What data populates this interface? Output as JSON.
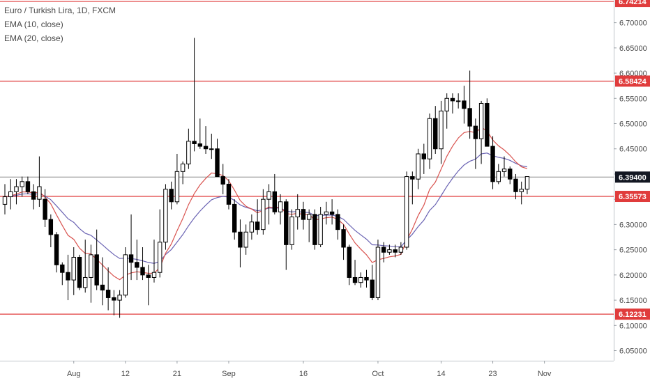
{
  "legend": {
    "title": "Euro / Turkish Lira, 1D, FXCM",
    "ema1": "EMA (10, close)",
    "ema2": "EMA (20, close)"
  },
  "colors": {
    "up_fill": "#ffffff",
    "down_fill": "#000000",
    "candle_outline": "#000000",
    "level_line": "#e03c3c",
    "ema10": "#d9534f",
    "ema20": "#6a63b3",
    "current_price_line": "#888888",
    "current_tag": "#131722"
  },
  "chart_data": {
    "type": "candlestick",
    "title": "Euro / Turkish Lira, 1D, FXCM",
    "ylim": [
      6.03,
      6.745
    ],
    "y_ticks": [
      "6.05000",
      "6.10000",
      "6.15000",
      "6.20000",
      "6.25000",
      "6.30000",
      "6.35000",
      "6.40000",
      "6.45000",
      "6.50000",
      "6.55000",
      "6.60000",
      "6.65000",
      "6.70000"
    ],
    "x_ticks": [
      {
        "label": "Aug",
        "index": 12
      },
      {
        "label": "12",
        "index": 21
      },
      {
        "label": "21",
        "index": 30
      },
      {
        "label": "Sep",
        "index": 39
      },
      {
        "label": "16",
        "index": 52
      },
      {
        "label": "Oct",
        "index": 65
      },
      {
        "label": "14",
        "index": 76
      },
      {
        "label": "23",
        "index": 85
      },
      {
        "label": "Nov",
        "index": 94
      }
    ],
    "levels": [
      {
        "value": 6.74214,
        "label": "6.74214"
      },
      {
        "value": 6.58424,
        "label": "6.58424"
      },
      {
        "value": 6.35573,
        "label": "6.35573"
      },
      {
        "value": 6.12231,
        "label": "6.12231"
      }
    ],
    "current_price": {
      "value": 6.394,
      "label": "6.39400"
    },
    "candles": [
      [
        6.34,
        6.38,
        6.32,
        6.355
      ],
      [
        6.355,
        6.39,
        6.33,
        6.365
      ],
      [
        6.365,
        6.39,
        6.34,
        6.375
      ],
      [
        6.375,
        6.395,
        6.355,
        6.385
      ],
      [
        6.385,
        6.395,
        6.36,
        6.365
      ],
      [
        6.365,
        6.38,
        6.33,
        6.35
      ],
      [
        6.35,
        6.435,
        6.335,
        6.375
      ],
      [
        6.35,
        6.37,
        6.295,
        6.31
      ],
      [
        6.31,
        6.32,
        6.255,
        6.28
      ],
      [
        6.28,
        6.285,
        6.205,
        6.22
      ],
      [
        6.22,
        6.225,
        6.18,
        6.205
      ],
      [
        6.205,
        6.24,
        6.15,
        6.19
      ],
      [
        6.19,
        6.255,
        6.16,
        6.235
      ],
      [
        6.235,
        6.24,
        6.17,
        6.175
      ],
      [
        6.175,
        6.27,
        6.165,
        6.195
      ],
      [
        6.195,
        6.26,
        6.145,
        6.24
      ],
      [
        6.24,
        6.29,
        6.17,
        6.18
      ],
      [
        6.18,
        6.235,
        6.14,
        6.17
      ],
      [
        6.17,
        6.215,
        6.13,
        6.155
      ],
      [
        6.155,
        6.17,
        6.12,
        6.15
      ],
      [
        6.15,
        6.17,
        6.115,
        6.16
      ],
      [
        6.16,
        6.255,
        6.155,
        6.24
      ],
      [
        6.24,
        6.32,
        6.19,
        6.225
      ],
      [
        6.225,
        6.27,
        6.19,
        6.215
      ],
      [
        6.215,
        6.255,
        6.19,
        6.2
      ],
      [
        6.2,
        6.22,
        6.14,
        6.195
      ],
      [
        6.195,
        6.27,
        6.185,
        6.205
      ],
      [
        6.205,
        6.33,
        6.195,
        6.265
      ],
      [
        6.265,
        6.38,
        6.25,
        6.37
      ],
      [
        6.37,
        6.385,
        6.33,
        6.345
      ],
      [
        6.345,
        6.44,
        6.34,
        6.405
      ],
      [
        6.405,
        6.425,
        6.38,
        6.42
      ],
      [
        6.42,
        6.49,
        6.41,
        6.465
      ],
      [
        6.465,
        6.67,
        6.445,
        6.46
      ],
      [
        6.46,
        6.51,
        6.45,
        6.455
      ],
      [
        6.455,
        6.495,
        6.44,
        6.45
      ],
      [
        6.45,
        6.48,
        6.43,
        6.45
      ],
      [
        6.45,
        6.47,
        6.4,
        6.395
      ],
      [
        6.395,
        6.42,
        6.36,
        6.38
      ],
      [
        6.38,
        6.39,
        6.33,
        6.34
      ],
      [
        6.34,
        6.35,
        6.27,
        6.285
      ],
      [
        6.285,
        6.31,
        6.215,
        6.255
      ],
      [
        6.255,
        6.3,
        6.24,
        6.285
      ],
      [
        6.285,
        6.32,
        6.27,
        6.305
      ],
      [
        6.305,
        6.35,
        6.28,
        6.29
      ],
      [
        6.29,
        6.37,
        6.28,
        6.35
      ],
      [
        6.35,
        6.38,
        6.3,
        6.365
      ],
      [
        6.365,
        6.4,
        6.32,
        6.325
      ],
      [
        6.325,
        6.36,
        6.3,
        6.345
      ],
      [
        6.345,
        6.35,
        6.21,
        6.26
      ],
      [
        6.26,
        6.33,
        6.25,
        6.315
      ],
      [
        6.315,
        6.36,
        6.29,
        6.33
      ],
      [
        6.33,
        6.345,
        6.29,
        6.31
      ],
      [
        6.31,
        6.33,
        6.265,
        6.32
      ],
      [
        6.32,
        6.33,
        6.25,
        6.26
      ],
      [
        6.26,
        6.335,
        6.255,
        6.32
      ],
      [
        6.32,
        6.345,
        6.3,
        6.325
      ],
      [
        6.325,
        6.35,
        6.3,
        6.32
      ],
      [
        6.32,
        6.33,
        6.27,
        6.29
      ],
      [
        6.29,
        6.3,
        6.23,
        6.255
      ],
      [
        6.255,
        6.26,
        6.18,
        6.195
      ],
      [
        6.195,
        6.23,
        6.18,
        6.185
      ],
      [
        6.185,
        6.205,
        6.175,
        6.195
      ],
      [
        6.195,
        6.21,
        6.175,
        6.19
      ],
      [
        6.19,
        6.22,
        6.15,
        6.155
      ],
      [
        6.155,
        6.27,
        6.15,
        6.255
      ],
      [
        6.255,
        6.265,
        6.225,
        6.245
      ],
      [
        6.245,
        6.26,
        6.24,
        6.25
      ],
      [
        6.25,
        6.26,
        6.235,
        6.245
      ],
      [
        6.245,
        6.265,
        6.24,
        6.255
      ],
      [
        6.255,
        6.405,
        6.25,
        6.395
      ],
      [
        6.395,
        6.405,
        6.34,
        6.39
      ],
      [
        6.39,
        6.45,
        6.37,
        6.44
      ],
      [
        6.44,
        6.46,
        6.4,
        6.43
      ],
      [
        6.43,
        6.52,
        6.41,
        6.51
      ],
      [
        6.51,
        6.535,
        6.44,
        6.45
      ],
      [
        6.45,
        6.545,
        6.42,
        6.525
      ],
      [
        6.525,
        6.56,
        6.49,
        6.55
      ],
      [
        6.55,
        6.56,
        6.52,
        6.545
      ],
      [
        6.545,
        6.56,
        6.53,
        6.545
      ],
      [
        6.545,
        6.575,
        6.5,
        6.53
      ],
      [
        6.53,
        6.605,
        6.47,
        6.495
      ],
      [
        6.495,
        6.51,
        6.41,
        6.47
      ],
      [
        6.47,
        6.545,
        6.42,
        6.54
      ],
      [
        6.54,
        6.55,
        6.46,
        6.455
      ],
      [
        6.455,
        6.475,
        6.37,
        6.385
      ],
      [
        6.385,
        6.42,
        6.38,
        6.405
      ],
      [
        6.405,
        6.435,
        6.395,
        6.41
      ],
      [
        6.41,
        6.415,
        6.38,
        6.39
      ],
      [
        6.39,
        6.4,
        6.35,
        6.365
      ],
      [
        6.365,
        6.385,
        6.34,
        6.37
      ],
      [
        6.37,
        6.395,
        6.36,
        6.395
      ]
    ]
  }
}
